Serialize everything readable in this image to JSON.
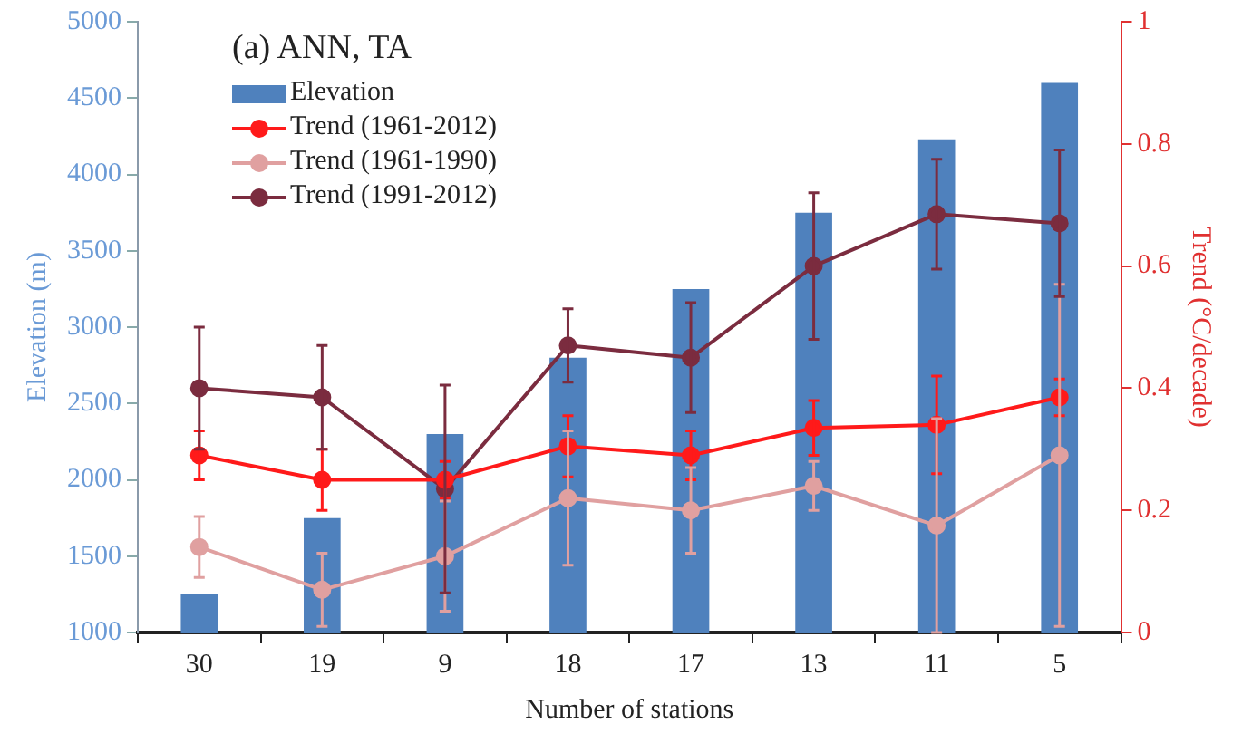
{
  "chart_data": {
    "type": "bar",
    "title": "(a) ANN, TA",
    "xlabel": "Number of stations",
    "ylabel": "Elevation (m)",
    "y2label": "Trend (°C/decade)",
    "categories": [
      "30",
      "19",
      "9",
      "18",
      "17",
      "13",
      "11",
      "5"
    ],
    "series": [
      {
        "name": "Elevation",
        "color": "#4f81bd",
        "values": [
          1250,
          1750,
          2300,
          2800,
          3250,
          3750,
          4230,
          4600
        ]
      },
      {
        "name": "Trend (1961-2012)",
        "type": "line",
        "axis": "y2",
        "color": "#ff1a1a",
        "values": [
          0.29,
          0.25,
          0.25,
          0.305,
          0.29,
          0.335,
          0.34,
          0.385
        ],
        "errors": [
          0.04,
          0.05,
          0.03,
          0.05,
          0.04,
          0.045,
          0.08,
          0.03
        ]
      },
      {
        "name": "Trend (1961-1990)",
        "type": "line",
        "axis": "y2",
        "color": "#e0a0a0",
        "values": [
          0.14,
          0.07,
          0.125,
          0.22,
          0.2,
          0.24,
          0.175,
          0.29
        ],
        "errors": [
          0.05,
          0.06,
          0.09,
          0.11,
          0.07,
          0.04,
          0.175,
          0.28
        ]
      },
      {
        "name": "Trend (1991-2012)",
        "type": "line",
        "axis": "y2",
        "color": "#7b2c3f",
        "values": [
          0.4,
          0.385,
          0.235,
          0.47,
          0.45,
          0.6,
          0.685,
          0.67
        ],
        "errors": [
          0.1,
          0.085,
          0.17,
          0.06,
          0.09,
          0.12,
          0.09,
          0.12
        ]
      }
    ],
    "ylim": [
      1000,
      5000
    ],
    "yticks": [
      1000,
      1500,
      2000,
      2500,
      3000,
      3500,
      4000,
      4500,
      5000
    ],
    "y2lim": [
      0,
      1
    ],
    "y2ticks": [
      0,
      0.2,
      0.4,
      0.6,
      0.8,
      1
    ],
    "grid": false,
    "legend": "top left",
    "marker": "circle",
    "line_style": "solid"
  }
}
